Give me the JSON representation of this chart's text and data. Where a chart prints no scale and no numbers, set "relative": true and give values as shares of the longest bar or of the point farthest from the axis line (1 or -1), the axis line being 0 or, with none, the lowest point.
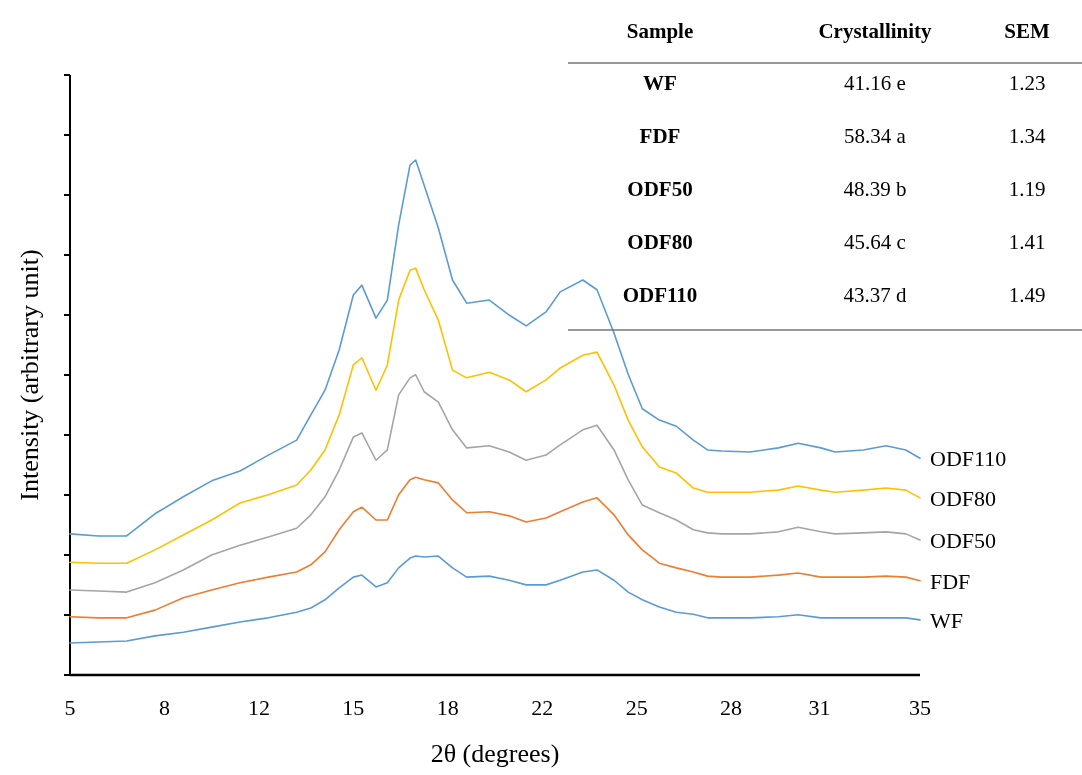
{
  "chart_data": {
    "type": "line",
    "relative": true,
    "xlabel": "2θ (degrees)",
    "ylabel": "Intensity (arbitrary unit)",
    "xlim": [
      5,
      35
    ],
    "xticks": [
      5,
      {
        "value": 8.333,
        "label": "8"
      },
      {
        "value": 11.667,
        "label": "12"
      },
      15,
      {
        "value": 18.333,
        "label": "18"
      },
      {
        "value": 21.667,
        "label": "22"
      },
      25,
      {
        "value": 28.333,
        "label": "28"
      },
      {
        "value": 31.45,
        "label": "31"
      },
      35
    ],
    "x": [
      5,
      6,
      7,
      8,
      9,
      10,
      11,
      12,
      13,
      13.5,
      14,
      14.5,
      15,
      15.3,
      15.8,
      16.2,
      16.6,
      17,
      17.2,
      17.5,
      18,
      18.5,
      19,
      19.8,
      20.5,
      21.1,
      21.8,
      22.3,
      23.1,
      23.6,
      24.2,
      24.7,
      25.2,
      25.8,
      26.4,
      27,
      27.5,
      28,
      29,
      30,
      30.7,
      31.5,
      32,
      33,
      33.8,
      34.5,
      35
    ],
    "legend": false,
    "grid": false,
    "series": [
      {
        "name": "WF",
        "color": "#5b9bd5",
        "values": [
          0.062,
          0.064,
          0.066,
          0.076,
          0.083,
          0.093,
          0.103,
          0.111,
          0.122,
          0.13,
          0.146,
          0.169,
          0.19,
          0.194,
          0.171,
          0.179,
          0.208,
          0.227,
          0.231,
          0.229,
          0.231,
          0.208,
          0.19,
          0.192,
          0.184,
          0.175,
          0.175,
          0.184,
          0.2,
          0.204,
          0.184,
          0.161,
          0.146,
          0.132,
          0.122,
          0.118,
          0.111,
          0.111,
          0.111,
          0.113,
          0.117,
          0.111,
          0.111,
          0.111,
          0.111,
          0.111,
          0.107
        ]
      },
      {
        "name": "FDF",
        "color": "#ed7d31",
        "values": [
          0.113,
          0.111,
          0.111,
          0.126,
          0.15,
          0.165,
          0.179,
          0.19,
          0.2,
          0.214,
          0.239,
          0.282,
          0.317,
          0.326,
          0.301,
          0.301,
          0.35,
          0.379,
          0.384,
          0.379,
          0.373,
          0.34,
          0.315,
          0.317,
          0.309,
          0.297,
          0.305,
          0.317,
          0.336,
          0.344,
          0.311,
          0.272,
          0.243,
          0.217,
          0.208,
          0.2,
          0.192,
          0.19,
          0.19,
          0.194,
          0.198,
          0.19,
          0.19,
          0.19,
          0.192,
          0.19,
          0.183
        ]
      },
      {
        "name": "ODF50",
        "color": "#a5a5a5",
        "values": [
          0.165,
          0.163,
          0.161,
          0.179,
          0.204,
          0.233,
          0.252,
          0.268,
          0.285,
          0.311,
          0.346,
          0.398,
          0.462,
          0.47,
          0.417,
          0.437,
          0.544,
          0.577,
          0.583,
          0.55,
          0.53,
          0.476,
          0.441,
          0.445,
          0.433,
          0.417,
          0.427,
          0.447,
          0.476,
          0.485,
          0.437,
          0.379,
          0.33,
          0.315,
          0.301,
          0.282,
          0.276,
          0.274,
          0.274,
          0.278,
          0.287,
          0.278,
          0.274,
          0.276,
          0.278,
          0.274,
          0.262
        ]
      },
      {
        "name": "ODF80",
        "color": "#ffc000",
        "values": [
          0.219,
          0.217,
          0.217,
          0.243,
          0.272,
          0.301,
          0.334,
          0.35,
          0.369,
          0.398,
          0.437,
          0.505,
          0.602,
          0.616,
          0.553,
          0.602,
          0.728,
          0.786,
          0.79,
          0.748,
          0.689,
          0.592,
          0.577,
          0.588,
          0.573,
          0.55,
          0.573,
          0.596,
          0.621,
          0.627,
          0.563,
          0.495,
          0.443,
          0.404,
          0.392,
          0.363,
          0.355,
          0.355,
          0.355,
          0.359,
          0.367,
          0.359,
          0.355,
          0.359,
          0.363,
          0.359,
          0.344
        ]
      },
      {
        "name": "ODF110",
        "color": "#5b9bd5",
        "values": [
          0.274,
          0.27,
          0.27,
          0.313,
          0.346,
          0.377,
          0.396,
          0.427,
          0.456,
          0.505,
          0.553,
          0.631,
          0.738,
          0.757,
          0.693,
          0.728,
          0.874,
          0.99,
          1,
          0.951,
          0.868,
          0.767,
          0.722,
          0.728,
          0.699,
          0.678,
          0.705,
          0.744,
          0.767,
          0.748,
          0.664,
          0.584,
          0.517,
          0.495,
          0.483,
          0.456,
          0.437,
          0.435,
          0.433,
          0.441,
          0.45,
          0.441,
          0.433,
          0.437,
          0.445,
          0.437,
          0.421
        ]
      }
    ],
    "annotations": [
      "Sample",
      "Crystallinity",
      "SEM",
      "WF",
      "41.16 e",
      "1.23",
      "FDF",
      "58.34 a",
      "1.34",
      "ODF50",
      "48.39 b",
      "1.19",
      "ODF80",
      "45.64 c",
      "1.41",
      "ODF110",
      "43.37 d",
      "1.49"
    ]
  }
}
